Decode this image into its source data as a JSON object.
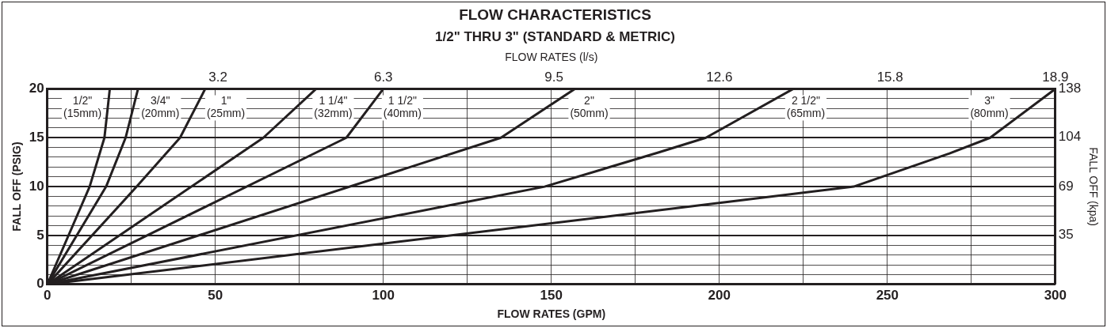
{
  "chart_data": {
    "type": "line",
    "title": "FLOW CHARACTERISTICS",
    "subtitle": "1/2\" THRU 3\" (STANDARD & METRIC)",
    "xlabel": "FLOW RATES (GPM)",
    "ylabel": "FALL OFF (PSIG)",
    "x2label": "FLOW RATES (l/s)",
    "y2label": "FALL OFF (kpa)",
    "xlim": [
      0,
      300
    ],
    "xticks": [
      0,
      {
        "value": 25,
        "label": null
      },
      50,
      {
        "value": 75,
        "label": null
      },
      100,
      {
        "value": 125,
        "label": null
      },
      150,
      {
        "value": 175,
        "label": null
      },
      200,
      {
        "value": 225,
        "label": null
      },
      250,
      {
        "value": 275,
        "label": null
      },
      300
    ],
    "ylim": [
      0,
      20
    ],
    "yticks": [
      0,
      {
        "value": 1,
        "label": null
      },
      {
        "value": 2,
        "label": null
      },
      {
        "value": 3,
        "label": null
      },
      {
        "value": 4,
        "label": null
      },
      5,
      {
        "value": 6,
        "label": null
      },
      {
        "value": 7,
        "label": null
      },
      {
        "value": 8,
        "label": null
      },
      {
        "value": 9,
        "label": null
      },
      10,
      {
        "value": 11,
        "label": null
      },
      {
        "value": 12,
        "label": null
      },
      {
        "value": 13,
        "label": null
      },
      {
        "value": 14,
        "label": null
      },
      15,
      {
        "value": 16,
        "label": null
      },
      {
        "value": 17,
        "label": null
      },
      {
        "value": 18,
        "label": null
      },
      {
        "value": 19,
        "label": null
      },
      20
    ],
    "x2lim": [
      0,
      18.9
    ],
    "x2ticks": [
      3.2,
      6.3,
      9.5,
      12.6,
      15.8,
      18.9
    ],
    "y2lim": [
      0,
      138
    ],
    "y2ticks": [
      35,
      69,
      104,
      138
    ],
    "grid": true,
    "marker": "none",
    "line_style": "solid",
    "series": [
      {
        "name": "1/2\" (15mm)",
        "color": "#231f20",
        "x": [
          0,
          12.6,
          17,
          18.6
        ],
        "values": [
          0,
          10,
          15,
          20
        ]
      },
      {
        "name": "3/4\" (20mm)",
        "color": "#231f20",
        "x": [
          0,
          17.5,
          23.3,
          27
        ],
        "values": [
          0,
          10,
          15,
          20
        ]
      },
      {
        "name": "1\" (25mm)",
        "color": "#231f20",
        "x": [
          0,
          26.6,
          39.5,
          47
        ],
        "values": [
          0,
          10,
          15,
          20
        ]
      },
      {
        "name": "1 1/4\" (32mm)",
        "color": "#231f20",
        "x": [
          0,
          64.3,
          80
        ],
        "values": [
          0,
          15,
          20
        ]
      },
      {
        "name": "1 1/2\" (40mm)",
        "color": "#231f20",
        "x": [
          0,
          89,
          100
        ],
        "values": [
          0,
          15,
          20
        ]
      },
      {
        "name": "2\" (50mm)",
        "color": "#231f20",
        "x": [
          0,
          135,
          157
        ],
        "values": [
          0,
          15,
          20
        ]
      },
      {
        "name": "2 1/2\" (65mm)",
        "color": "#231f20",
        "x": [
          0,
          148,
          182,
          196,
          222
        ],
        "values": [
          0,
          10,
          13.5,
          15,
          20
        ]
      },
      {
        "name": "3\" (80mm)",
        "color": "#231f20",
        "x": [
          0,
          240,
          268.5,
          280.6,
          300
        ],
        "values": [
          0,
          10,
          13.4,
          15,
          20
        ]
      }
    ]
  }
}
